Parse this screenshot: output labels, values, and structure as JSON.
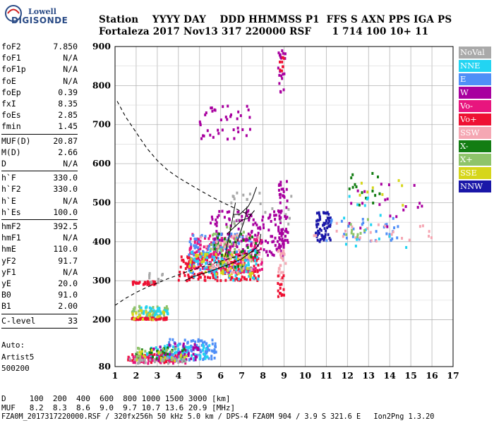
{
  "logo": {
    "line1": "Lowell",
    "line2": "DIGISONDE"
  },
  "header": {
    "line1": "Station    YYYY DAY    DDD HHMMSS P1  FFS S AXN PPS IGA PS",
    "line2": "Fortaleza 2017 Nov13 317 220000 RSF      1 714 100 10+ 11"
  },
  "params": [
    {
      "name": "foF2",
      "value": "7.850"
    },
    {
      "name": "foF1",
      "value": "N/A"
    },
    {
      "name": "foF1p",
      "value": "N/A"
    },
    {
      "name": "foE",
      "value": "N/A"
    },
    {
      "name": "foEp",
      "value": "0.39"
    },
    {
      "name": "fxI",
      "value": "8.35"
    },
    {
      "name": "foEs",
      "value": "2.85"
    },
    {
      "name": "fmin",
      "value": "1.45"
    },
    {
      "name": "MUF(D)",
      "value": "20.87"
    },
    {
      "name": "M(D)",
      "value": "2.66"
    },
    {
      "name": "D",
      "value": "N/A"
    },
    {
      "name": "h`F",
      "value": "330.0"
    },
    {
      "name": "h`F2",
      "value": "330.0"
    },
    {
      "name": "h`E",
      "value": "N/A"
    },
    {
      "name": "h`Es",
      "value": "100.0"
    },
    {
      "name": "hmF2",
      "value": "392.5"
    },
    {
      "name": "hmF1",
      "value": "N/A"
    },
    {
      "name": "hmE",
      "value": "110.0"
    },
    {
      "name": "yF2",
      "value": "91.7"
    },
    {
      "name": "yF1",
      "value": "N/A"
    },
    {
      "name": "yE",
      "value": "20.0"
    },
    {
      "name": "B0",
      "value": "91.0"
    },
    {
      "name": "B1",
      "value": "2.00"
    },
    {
      "name": "C-level",
      "value": "33"
    }
  ],
  "auto": {
    "line1": "Auto:",
    "line2": "Artist5",
    "line3": "500200"
  },
  "legend": [
    {
      "label": "NoVal",
      "color": "#a9a9a9"
    },
    {
      "label": "NNE",
      "color": "#22d4f2"
    },
    {
      "label": "E",
      "color": "#4f8ff7"
    },
    {
      "label": "W",
      "color": "#a8009f"
    },
    {
      "label": "Vo-",
      "color": "#e8157e"
    },
    {
      "label": "Vo+",
      "color": "#ee1133"
    },
    {
      "label": "SSW",
      "color": "#f5a7b3"
    },
    {
      "label": "X-",
      "color": "#137d13"
    },
    {
      "label": "X+",
      "color": "#8ec46a"
    },
    {
      "label": "SSE",
      "color": "#d6d61a"
    },
    {
      "label": "NNW",
      "color": "#1a17a8"
    }
  ],
  "bottom": {
    "line1": "D     100  200  400  600  800 1000 1500 3000 [km]",
    "line2": "MUF   8.2  8.3  8.6  9.0  9.7 10.7 13.6 20.9 [MHz]",
    "line3": "FZA0M_2017317220000.RSF / 320fx256h 50 kHz 5.0 km / DPS-4 FZA0M 904 / 3.9 S 321.6 E   Ion2Png 1.3.20"
  },
  "chart_data": {
    "type": "scatter",
    "xlim": [
      1,
      17
    ],
    "ylim": [
      80,
      900
    ],
    "x_ticks": [
      1,
      2,
      3,
      4,
      5,
      6,
      7,
      8,
      9,
      10,
      11,
      12,
      13,
      14,
      15,
      16,
      17
    ],
    "y_ticks": [
      80,
      200,
      300,
      400,
      500,
      600,
      700,
      800,
      900
    ],
    "grid": true,
    "legend_placement": "right",
    "clusters": [
      {
        "color": "#ee1133",
        "x": [
          1.6,
          4.2
        ],
        "y": [
          90,
          112
        ],
        "n": 70
      },
      {
        "color": "#e8157e",
        "x": [
          1.6,
          4.4
        ],
        "y": [
          88,
          108
        ],
        "n": 60
      },
      {
        "color": "#4f8ff7",
        "x": [
          3.5,
          5.8
        ],
        "y": [
          95,
          150
        ],
        "n": 110
      },
      {
        "color": "#22d4f2",
        "x": [
          2.5,
          5.5
        ],
        "y": [
          100,
          135
        ],
        "n": 60
      },
      {
        "color": "#a8009f",
        "x": [
          2.5,
          5.0
        ],
        "y": [
          95,
          140
        ],
        "n": 45
      },
      {
        "color": "#137d13",
        "x": [
          2.0,
          4.5
        ],
        "y": [
          95,
          130
        ],
        "n": 25
      },
      {
        "color": "#8ec46a",
        "x": [
          2.0,
          4.5
        ],
        "y": [
          95,
          130
        ],
        "n": 20
      },
      {
        "color": "#d6d61a",
        "x": [
          2.0,
          4.5
        ],
        "y": [
          95,
          125
        ],
        "n": 20
      },
      {
        "color": "#a9a9a9",
        "x": [
          1.6,
          4.4
        ],
        "y": [
          88,
          102
        ],
        "n": 25
      },
      {
        "color": "#8ec46a",
        "x": [
          1.8,
          3.5
        ],
        "y": [
          200,
          235
        ],
        "n": 55
      },
      {
        "color": "#22d4f2",
        "x": [
          2.2,
          3.6
        ],
        "y": [
          205,
          235
        ],
        "n": 30
      },
      {
        "color": "#ee1133",
        "x": [
          1.8,
          3.5
        ],
        "y": [
          200,
          205
        ],
        "n": 50
      },
      {
        "color": "#d6d61a",
        "x": [
          1.8,
          3.4
        ],
        "y": [
          200,
          225
        ],
        "n": 20
      },
      {
        "color": "#ee1133",
        "x": [
          1.8,
          3.0
        ],
        "y": [
          290,
          298
        ],
        "n": 30
      },
      {
        "color": "#a9a9a9",
        "x": [
          2.6,
          3.3
        ],
        "y": [
          295,
          320
        ],
        "n": 12
      },
      {
        "color": "#ee1133",
        "x": [
          4.0,
          7.8
        ],
        "y": [
          300,
          370
        ],
        "n": 220
      },
      {
        "color": "#e8157e",
        "x": [
          4.5,
          8.0
        ],
        "y": [
          320,
          420
        ],
        "n": 180
      },
      {
        "color": "#4f8ff7",
        "x": [
          4.5,
          7.5
        ],
        "y": [
          320,
          420
        ],
        "n": 100
      },
      {
        "color": "#a8009f",
        "x": [
          5.5,
          9.0
        ],
        "y": [
          360,
          480
        ],
        "n": 140
      },
      {
        "color": "#22d4f2",
        "x": [
          4.5,
          7.8
        ],
        "y": [
          300,
          380
        ],
        "n": 70
      },
      {
        "color": "#d6d61a",
        "x": [
          4.5,
          7.5
        ],
        "y": [
          310,
          370
        ],
        "n": 60
      },
      {
        "color": "#8ec46a",
        "x": [
          5.5,
          7.5
        ],
        "y": [
          330,
          450
        ],
        "n": 40
      },
      {
        "color": "#137d13",
        "x": [
          5.5,
          7.8
        ],
        "y": [
          330,
          420
        ],
        "n": 30
      },
      {
        "color": "#f5a7b3",
        "x": [
          5.0,
          8.0
        ],
        "y": [
          320,
          420
        ],
        "n": 40
      },
      {
        "color": "#a9a9a9",
        "x": [
          6.5,
          9.5
        ],
        "y": [
          440,
          530
        ],
        "n": 25
      },
      {
        "color": "#a8009f",
        "x": [
          8.7,
          9.2
        ],
        "y": [
          360,
          555
        ],
        "n": 50
      },
      {
        "color": "#f5a7b3",
        "x": [
          8.7,
          9.1
        ],
        "y": [
          300,
          380
        ],
        "n": 25
      },
      {
        "color": "#ee1133",
        "x": [
          8.7,
          9.0
        ],
        "y": [
          250,
          320
        ],
        "n": 15
      },
      {
        "color": "#a8009f",
        "x": [
          8.7,
          9.1
        ],
        "y": [
          780,
          890
        ],
        "n": 20
      },
      {
        "color": "#ee1133",
        "x": [
          8.8,
          9.0
        ],
        "y": [
          820,
          880
        ],
        "n": 8
      },
      {
        "color": "#a8009f",
        "x": [
          4.8,
          7.5
        ],
        "y": [
          660,
          750
        ],
        "n": 40
      },
      {
        "color": "#1a17a8",
        "x": [
          10.5,
          11.2
        ],
        "y": [
          400,
          475
        ],
        "n": 60
      },
      {
        "color": "#4f8ff7",
        "x": [
          10.8,
          14.5
        ],
        "y": [
          400,
          460
        ],
        "n": 30
      },
      {
        "color": "#f5a7b3",
        "x": [
          10.0,
          16.0
        ],
        "y": [
          400,
          450
        ],
        "n": 25
      },
      {
        "color": "#a8009f",
        "x": [
          12.0,
          15.8
        ],
        "y": [
          400,
          550
        ],
        "n": 20
      },
      {
        "color": "#137d13",
        "x": [
          12.0,
          13.6
        ],
        "y": [
          480,
          580
        ],
        "n": 15
      },
      {
        "color": "#22d4f2",
        "x": [
          11.8,
          15.0
        ],
        "y": [
          380,
          520
        ],
        "n": 15
      },
      {
        "color": "#d6d61a",
        "x": [
          12.5,
          14.8
        ],
        "y": [
          490,
          560
        ],
        "n": 8
      },
      {
        "color": "#8ec46a",
        "x": [
          11.8,
          13.0
        ],
        "y": [
          410,
          460
        ],
        "n": 10
      }
    ],
    "lines": [
      {
        "name": "MUF curve",
        "style": "dashed",
        "points": [
          [
            1.1,
            760
          ],
          [
            1.5,
            720
          ],
          [
            2,
            680
          ],
          [
            2.5,
            640
          ],
          [
            3,
            608
          ],
          [
            3.5,
            583
          ],
          [
            4,
            564
          ],
          [
            4.5,
            548
          ],
          [
            5,
            532
          ],
          [
            5.5,
            517
          ],
          [
            6,
            503
          ],
          [
            6.5,
            490
          ],
          [
            7,
            477
          ],
          [
            7.5,
            466
          ]
        ]
      },
      {
        "name": "MUF curve low",
        "style": "dashed",
        "points": [
          [
            1.0,
            237
          ],
          [
            1.5,
            255
          ],
          [
            2,
            270
          ],
          [
            2.5,
            283
          ],
          [
            3,
            294
          ],
          [
            3.5,
            305
          ],
          [
            4,
            315
          ],
          [
            4.5,
            325
          ],
          [
            5,
            334
          ],
          [
            5.5,
            342
          ],
          [
            6,
            350
          ],
          [
            6.5,
            358
          ],
          [
            7,
            366
          ],
          [
            7.5,
            374
          ],
          [
            7.9,
            380
          ]
        ]
      },
      {
        "name": "profile",
        "style": "solid",
        "points": [
          [
            4.3,
            300
          ],
          [
            4.6,
            308
          ],
          [
            5,
            316
          ],
          [
            5.5,
            324
          ],
          [
            6,
            334
          ],
          [
            6.5,
            344
          ],
          [
            7,
            356
          ],
          [
            7.3,
            368
          ],
          [
            7.6,
            380
          ],
          [
            7.8,
            392
          ],
          [
            7.85,
            400
          ],
          [
            7.9,
            420
          ]
        ]
      },
      {
        "name": "trace-a",
        "style": "solid",
        "points": [
          [
            6.2,
            360
          ],
          [
            6.3,
            390
          ],
          [
            6.5,
            440
          ],
          [
            6.6,
            470
          ],
          [
            6.7,
            500
          ]
        ]
      },
      {
        "name": "trace-b",
        "style": "solid",
        "points": [
          [
            6.6,
            470
          ],
          [
            6.9,
            470
          ],
          [
            7.1,
            480
          ],
          [
            7.3,
            490
          ],
          [
            7.5,
            510
          ],
          [
            7.7,
            540
          ]
        ]
      },
      {
        "name": "trace-c",
        "style": "solid",
        "points": [
          [
            6.8,
            400
          ],
          [
            6.9,
            420
          ],
          [
            7.1,
            450
          ],
          [
            7.2,
            470
          ],
          [
            7.25,
            490
          ]
        ]
      },
      {
        "name": "trace-d",
        "style": "solid",
        "points": [
          [
            6.3,
            420
          ],
          [
            6.7,
            440
          ],
          [
            7.0,
            455
          ],
          [
            7.3,
            460
          ],
          [
            7.6,
            480
          ]
        ]
      }
    ]
  }
}
